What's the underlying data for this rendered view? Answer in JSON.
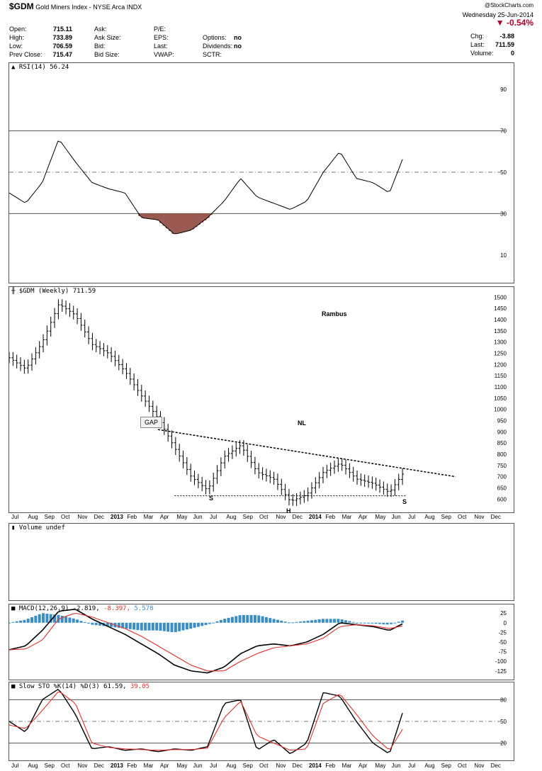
{
  "header": {
    "symbol": "$GDM",
    "name": "Gold Miners Index - NYSE Arca",
    "exchange": "INDX",
    "copyright": "@StockCharts.com",
    "date": "Wednesday  25-Jun-2014",
    "pct_change": "-0.54%",
    "down_arrow": "▼",
    "quote": [
      {
        "label": "Open:",
        "value": "715.11"
      },
      {
        "label": "High:",
        "value": "733.89"
      },
      {
        "label": "Low:",
        "value": "706.59"
      },
      {
        "label": "Prev Close:",
        "value": "715.47"
      }
    ],
    "ask_col": [
      "Ask:",
      "Ask Size:",
      "Bid:",
      "Bid Size:"
    ],
    "pe_col": [
      "P/E:",
      "EPS:",
      "Last:",
      "VWAP:"
    ],
    "opt_col": [
      {
        "label": "Options:",
        "value": "no"
      },
      {
        "label": "Dividends:",
        "value": "no"
      },
      {
        "label": "SCTR:",
        "value": ""
      }
    ],
    "right_col": [
      {
        "label": "Chg:",
        "value": "-3.88"
      },
      {
        "label": "Last:",
        "value": "711.59"
      },
      {
        "label": "Volume:",
        "value": "0"
      }
    ]
  },
  "panels": {
    "rsi_label": "RSI(14) 56.24",
    "price_label": "$GDM (Weekly) 711.59",
    "volume_label": "Volume undef",
    "macd_label_black": "MACD(12,26,9) -2.819,",
    "macd_label_red": "-8.397,",
    "macd_label_blue": "5.578",
    "sto_label_black": "Slow STO %K(14) %D(3) 61.59,",
    "sto_label_red": "39.05"
  },
  "annotations": {
    "rambus": "Rambus",
    "gap": "GAP",
    "nl": "NL",
    "s_left": "S",
    "h": "H",
    "s_right": "S"
  },
  "colors": {
    "price": "#000000",
    "rsi_fill": "#9a5a52",
    "macd_signal": "#e0302a",
    "histogram": "#3a8ec4",
    "pct_change": "#b0002a"
  },
  "chart_data": [
    {
      "type": "line",
      "name": "RSI(14)",
      "ylim": [
        0,
        100
      ],
      "yticks": [
        10,
        30,
        50,
        70,
        90
      ],
      "reference_lines": [
        30,
        50,
        70
      ],
      "x": [
        "2012-07",
        "2012-08",
        "2012-09",
        "2012-10",
        "2012-11",
        "2012-12",
        "2013-01",
        "2013-02",
        "2013-03",
        "2013-04",
        "2013-05",
        "2013-06",
        "2013-07",
        "2013-08",
        "2013-09",
        "2013-10",
        "2013-11",
        "2013-12",
        "2014-01",
        "2014-02",
        "2014-03",
        "2014-04",
        "2014-05",
        "2014-06",
        "2014-06-25"
      ],
      "values": [
        40,
        35,
        45,
        66,
        55,
        45,
        42,
        40,
        28,
        27,
        20,
        22,
        28,
        36,
        47,
        38,
        35,
        32,
        36,
        50,
        60,
        47,
        45,
        40,
        56.24
      ]
    },
    {
      "type": "ohlc",
      "name": "$GDM (Weekly)",
      "ylim": [
        560,
        1520
      ],
      "yticks": [
        600,
        650,
        700,
        750,
        800,
        850,
        900,
        950,
        1000,
        1050,
        1100,
        1150,
        1200,
        1250,
        1300,
        1350,
        1400,
        1450,
        1500
      ],
      "x": [
        "2012-07",
        "2012-08",
        "2012-09",
        "2012-10",
        "2012-11",
        "2012-12",
        "2013-01",
        "2013-02",
        "2013-03",
        "2013-04",
        "2013-05",
        "2013-06",
        "2013-07",
        "2013-08",
        "2013-09",
        "2013-10",
        "2013-11",
        "2013-12",
        "2014-01",
        "2014-02",
        "2014-03",
        "2014-04",
        "2014-05",
        "2014-06",
        "2014-06-25"
      ],
      "close": [
        1230,
        1180,
        1300,
        1470,
        1420,
        1290,
        1250,
        1170,
        1060,
        960,
        830,
        700,
        640,
        790,
        840,
        720,
        690,
        590,
        620,
        720,
        760,
        690,
        670,
        630,
        711.59
      ],
      "lines": [
        {
          "name": "NL",
          "from": [
            "2013-04",
            910
          ],
          "to": [
            "2014-10",
            700
          ]
        },
        {
          "name": "support",
          "from": [
            "2013-05",
            615
          ],
          "to": [
            "2014-07",
            615
          ]
        }
      ]
    },
    {
      "type": "line",
      "name": "MACD(12,26,9)",
      "ylim": [
        -140,
        40
      ],
      "yticks": [
        25,
        0,
        -25,
        -50,
        -75,
        -100,
        -125
      ],
      "x": [
        "2012-07",
        "2012-08",
        "2012-09",
        "2012-10",
        "2012-11",
        "2012-12",
        "2013-01",
        "2013-02",
        "2013-03",
        "2013-04",
        "2013-05",
        "2013-06",
        "2013-07",
        "2013-08",
        "2013-09",
        "2013-10",
        "2013-11",
        "2013-12",
        "2014-01",
        "2014-02",
        "2014-03",
        "2014-04",
        "2014-05",
        "2014-06",
        "2014-06-25"
      ],
      "series": [
        {
          "name": "MACD",
          "values": [
            -70,
            -60,
            -20,
            30,
            35,
            10,
            -10,
            -30,
            -55,
            -80,
            -110,
            -125,
            -130,
            -115,
            -80,
            -60,
            -55,
            -60,
            -50,
            -30,
            0,
            -5,
            -10,
            -20,
            -2.819
          ]
        },
        {
          "name": "Signal",
          "values": [
            -70,
            -68,
            -45,
            10,
            25,
            15,
            0,
            -15,
            -35,
            -60,
            -85,
            -110,
            -125,
            -125,
            -100,
            -80,
            -65,
            -60,
            -55,
            -40,
            -10,
            -5,
            -8,
            -15,
            -8.397
          ]
        },
        {
          "name": "Histogram",
          "values": [
            0,
            8,
            25,
            20,
            10,
            -5,
            -10,
            -15,
            -20,
            -20,
            -25,
            -15,
            -5,
            10,
            20,
            20,
            10,
            0,
            5,
            10,
            10,
            0,
            -2,
            -5,
            5.578
          ]
        }
      ]
    },
    {
      "type": "line",
      "name": "Slow STO %K(14) %D(3)",
      "ylim": [
        0,
        100
      ],
      "yticks": [
        20,
        50,
        80
      ],
      "reference_lines": [
        20,
        50,
        80
      ],
      "x": [
        "2012-07",
        "2012-08",
        "2012-09",
        "2012-10",
        "2012-11",
        "2012-12",
        "2013-01",
        "2013-02",
        "2013-03",
        "2013-04",
        "2013-05",
        "2013-06",
        "2013-07",
        "2013-08",
        "2013-09",
        "2013-10",
        "2013-11",
        "2013-12",
        "2014-01",
        "2014-02",
        "2014-03",
        "2014-04",
        "2014-05",
        "2014-06",
        "2014-06-25"
      ],
      "series": [
        {
          "name": "%K",
          "values": [
            50,
            35,
            80,
            95,
            60,
            12,
            15,
            10,
            12,
            8,
            12,
            10,
            15,
            75,
            80,
            10,
            25,
            5,
            20,
            90,
            85,
            50,
            20,
            5,
            61.59
          ]
        },
        {
          "name": "%D",
          "values": [
            45,
            40,
            65,
            92,
            75,
            20,
            14,
            12,
            11,
            10,
            11,
            11,
            13,
            55,
            78,
            30,
            20,
            10,
            12,
            75,
            88,
            60,
            30,
            10,
            39.05
          ]
        }
      ]
    }
  ],
  "x_axis": {
    "ticks": [
      "Jul",
      "Aug",
      "Sep",
      "Oct",
      "Nov",
      "Dec",
      "2013",
      "Feb",
      "Mar",
      "Apr",
      "May",
      "Jun",
      "Jul",
      "Aug",
      "Sep",
      "Oct",
      "Nov",
      "Dec",
      "2014",
      "Feb",
      "Mar",
      "Apr",
      "May",
      "Jun",
      "Jul",
      "Aug",
      "Sep",
      "Oct",
      "Nov",
      "Dec"
    ],
    "bold": [
      "2013",
      "2014"
    ]
  }
}
